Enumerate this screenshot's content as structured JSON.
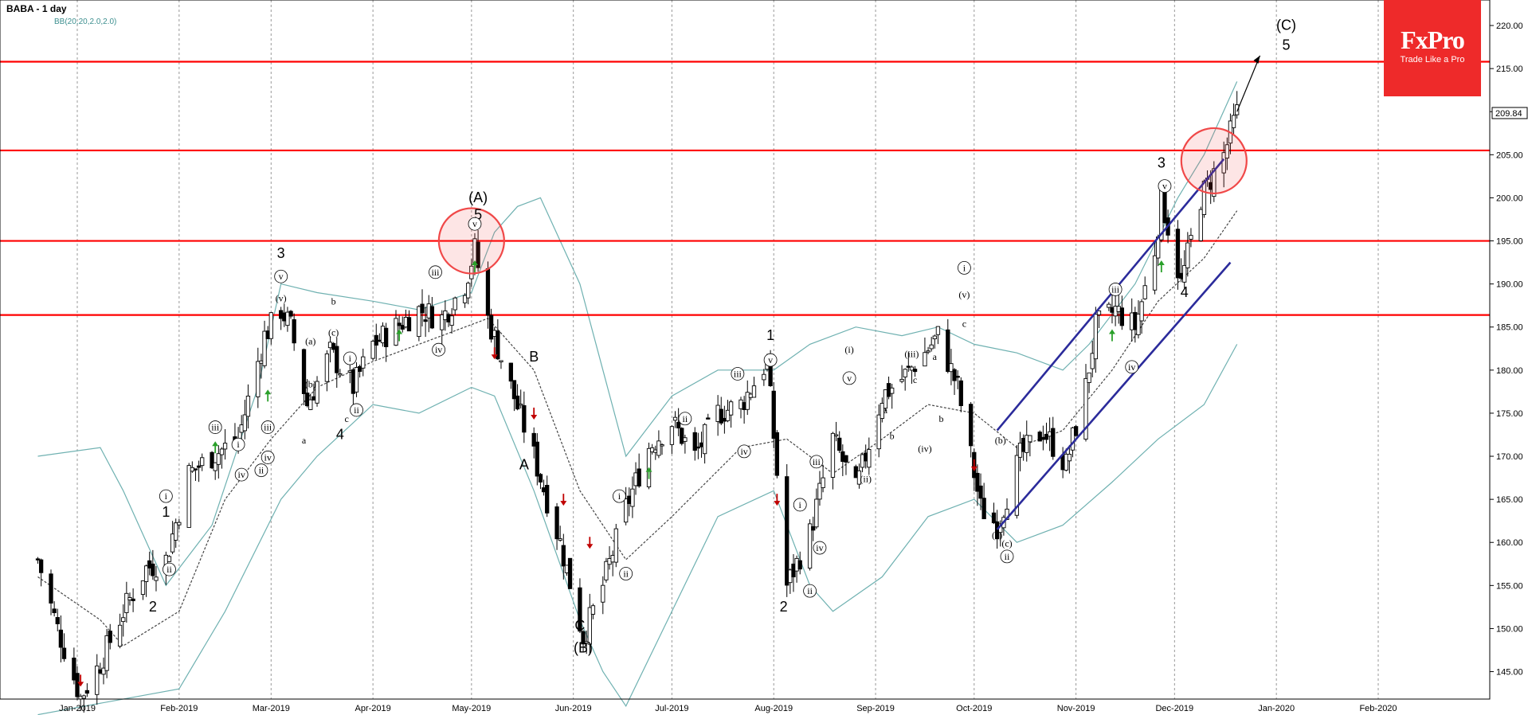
{
  "header": {
    "symbol_title": "BABA  - 1 day",
    "indicator": "BB(20,20,2.0,2.0)"
  },
  "logo": {
    "text": "FxPro",
    "tagline": "Trade Like a Pro"
  },
  "colors": {
    "support_resistance": "#ff0000",
    "channel": "#2b2b9b",
    "bollinger": "#6fb1b1",
    "signal_circle": "#f04848",
    "up_candle": "#ffffff",
    "down_candle": "#000000"
  },
  "chart_data": {
    "type": "candlestick",
    "symbol": "BABA",
    "timeframe": "1 day",
    "indicator": "BB(20,20,2.0,2.0)",
    "y_axis": {
      "range": [
        142.0,
        221.0
      ],
      "ticks": [
        "145.00",
        "150.00",
        "155.00",
        "160.00",
        "165.00",
        "170.00",
        "175.00",
        "180.00",
        "185.00",
        "190.00",
        "195.00",
        "200.00",
        "205.00",
        "210.00",
        "215.00",
        "220.00"
      ]
    },
    "x_axis": {
      "ticks": [
        "Jan-2019",
        "Feb-2019",
        "Mar-2019",
        "Apr-2019",
        "May-2019",
        "Jun-2019",
        "Jul-2019",
        "Aug-2019",
        "Sep-2019",
        "Oct-2019",
        "Nov-2019",
        "Dec-2019",
        "Jan-2020",
        "Feb-2020"
      ]
    },
    "last_price": "209.84",
    "horizontal_levels": [
      215.8,
      205.5,
      195.0,
      186.4
    ],
    "price_path": [
      [
        "2018-12-20",
        158
      ],
      [
        "2018-12-26",
        150
      ],
      [
        "2019-01-02",
        142
      ],
      [
        "2019-01-08",
        146
      ],
      [
        "2019-01-15",
        152
      ],
      [
        "2019-01-22",
        157
      ],
      [
        "2019-01-28",
        158
      ],
      [
        "2019-02-04",
        168
      ],
      [
        "2019-02-11",
        170
      ],
      [
        "2019-02-19",
        172
      ],
      [
        "2019-02-27",
        184
      ],
      [
        "2019-03-04",
        187
      ],
      [
        "2019-03-07",
        185
      ],
      [
        "2019-03-12",
        176
      ],
      [
        "2019-03-19",
        182
      ],
      [
        "2019-03-26",
        178
      ],
      [
        "2019-04-01",
        183
      ],
      [
        "2019-04-08",
        185
      ],
      [
        "2019-04-15",
        187
      ],
      [
        "2019-04-22",
        186
      ],
      [
        "2019-04-29",
        190
      ],
      [
        "2019-05-02",
        194
      ],
      [
        "2019-05-06",
        186
      ],
      [
        "2019-05-13",
        178
      ],
      [
        "2019-05-20",
        170
      ],
      [
        "2019-05-28",
        160
      ],
      [
        "2019-06-04",
        149
      ],
      [
        "2019-06-10",
        155
      ],
      [
        "2019-06-17",
        164
      ],
      [
        "2019-06-24",
        171
      ],
      [
        "2019-07-01",
        174
      ],
      [
        "2019-07-08",
        170
      ],
      [
        "2019-07-15",
        175
      ],
      [
        "2019-07-22",
        176
      ],
      [
        "2019-07-30",
        181
      ],
      [
        "2019-08-02",
        168
      ],
      [
        "2019-08-05",
        155
      ],
      [
        "2019-08-12",
        161
      ],
      [
        "2019-08-19",
        172
      ],
      [
        "2019-08-26",
        166
      ],
      [
        "2019-09-03",
        177
      ],
      [
        "2019-09-09",
        179
      ],
      [
        "2019-09-16",
        182
      ],
      [
        "2019-09-20",
        184
      ],
      [
        "2019-09-26",
        178
      ],
      [
        "2019-10-03",
        164
      ],
      [
        "2019-10-08",
        162
      ],
      [
        "2019-10-15",
        170
      ],
      [
        "2019-10-22",
        173
      ],
      [
        "2019-10-29",
        169
      ],
      [
        "2019-11-04",
        178
      ],
      [
        "2019-11-07",
        185
      ],
      [
        "2019-11-13",
        187
      ],
      [
        "2019-11-19",
        185
      ],
      [
        "2019-11-25",
        194
      ],
      [
        "2019-11-27",
        200
      ],
      [
        "2019-12-03",
        190
      ],
      [
        "2019-12-09",
        200
      ],
      [
        "2019-12-16",
        205
      ],
      [
        "2019-12-20",
        209.84
      ]
    ],
    "bollinger_upper": [
      [
        "2018-12-20",
        170
      ],
      [
        "2019-01-08",
        171
      ],
      [
        "2019-01-15",
        166
      ],
      [
        "2019-01-28",
        155
      ],
      [
        "2019-02-11",
        162
      ],
      [
        "2019-02-25",
        178
      ],
      [
        "2019-03-04",
        190
      ],
      [
        "2019-03-15",
        189
      ],
      [
        "2019-04-01",
        188
      ],
      [
        "2019-04-15",
        187
      ],
      [
        "2019-05-01",
        189
      ],
      [
        "2019-05-08",
        196
      ],
      [
        "2019-05-15",
        199
      ],
      [
        "2019-05-22",
        200
      ],
      [
        "2019-06-03",
        190
      ],
      [
        "2019-06-17",
        170
      ],
      [
        "2019-07-01",
        177
      ],
      [
        "2019-07-15",
        180
      ],
      [
        "2019-08-01",
        180
      ],
      [
        "2019-08-12",
        183
      ],
      [
        "2019-08-26",
        185
      ],
      [
        "2019-09-09",
        184
      ],
      [
        "2019-09-20",
        185
      ],
      [
        "2019-10-01",
        183
      ],
      [
        "2019-10-14",
        182
      ],
      [
        "2019-10-28",
        180
      ],
      [
        "2019-11-05",
        183
      ],
      [
        "2019-11-19",
        190
      ],
      [
        "2019-12-02",
        200
      ],
      [
        "2019-12-10",
        205
      ],
      [
        "2019-12-20",
        213.5
      ]
    ],
    "bollinger_middle": [
      [
        "2018-12-20",
        156
      ],
      [
        "2019-01-08",
        151
      ],
      [
        "2019-01-15",
        148
      ],
      [
        "2019-02-01",
        152
      ],
      [
        "2019-02-15",
        165
      ],
      [
        "2019-03-01",
        172
      ],
      [
        "2019-03-15",
        178
      ],
      [
        "2019-04-01",
        181
      ],
      [
        "2019-04-15",
        183
      ],
      [
        "2019-05-06",
        186
      ],
      [
        "2019-05-20",
        180
      ],
      [
        "2019-06-03",
        166
      ],
      [
        "2019-06-17",
        158
      ],
      [
        "2019-07-01",
        163
      ],
      [
        "2019-07-22",
        171
      ],
      [
        "2019-08-05",
        172
      ],
      [
        "2019-08-19",
        168
      ],
      [
        "2019-09-03",
        172
      ],
      [
        "2019-09-17",
        176
      ],
      [
        "2019-10-01",
        175
      ],
      [
        "2019-10-14",
        171
      ],
      [
        "2019-10-28",
        173
      ],
      [
        "2019-11-12",
        180
      ],
      [
        "2019-11-26",
        188
      ],
      [
        "2019-12-10",
        193
      ],
      [
        "2019-12-20",
        198.5
      ]
    ],
    "bollinger_lower": [
      [
        "2018-12-20",
        140
      ],
      [
        "2019-02-01",
        143
      ],
      [
        "2019-02-15",
        152
      ],
      [
        "2019-03-04",
        165
      ],
      [
        "2019-03-15",
        170
      ],
      [
        "2019-04-01",
        176
      ],
      [
        "2019-04-15",
        175
      ],
      [
        "2019-05-01",
        178
      ],
      [
        "2019-05-08",
        177
      ],
      [
        "2019-05-20",
        166
      ],
      [
        "2019-06-03",
        151
      ],
      [
        "2019-06-10",
        145
      ],
      [
        "2019-06-17",
        141
      ],
      [
        "2019-07-01",
        152
      ],
      [
        "2019-07-15",
        163
      ],
      [
        "2019-08-01",
        166
      ],
      [
        "2019-08-12",
        155
      ],
      [
        "2019-08-19",
        152
      ],
      [
        "2019-09-03",
        156
      ],
      [
        "2019-09-17",
        163
      ],
      [
        "2019-10-01",
        165
      ],
      [
        "2019-10-14",
        160
      ],
      [
        "2019-10-28",
        162
      ],
      [
        "2019-11-12",
        167
      ],
      [
        "2019-11-26",
        172
      ],
      [
        "2019-12-10",
        176
      ],
      [
        "2019-12-20",
        183
      ]
    ],
    "channel_lines": [
      {
        "from": [
          "2019-10-08",
          173
        ],
        "to": [
          "2019-12-16",
          204.5
        ]
      },
      {
        "from": [
          "2019-10-08",
          161.5
        ],
        "to": [
          "2019-12-18",
          192.5
        ]
      }
    ],
    "arrow": {
      "from": [
        "2019-12-20",
        210
      ],
      "to": [
        "2019-12-27",
        216.5
      ]
    },
    "signal_circles": [
      [
        "2019-05-01",
        195
      ],
      [
        "2019-12-13",
        204.3
      ]
    ],
    "wave_labels": [
      [
        "2019-01-28",
        163,
        "1"
      ],
      [
        "2019-01-24",
        152,
        "2"
      ],
      [
        "2019-03-04",
        193,
        "3"
      ],
      [
        "2019-03-22",
        172,
        "4"
      ],
      [
        "2019-05-03",
        199.5,
        "(A)"
      ],
      [
        "2019-05-03",
        197.5,
        "5"
      ],
      [
        "2019-05-20",
        181,
        "B"
      ],
      [
        "2019-05-17",
        168.5,
        "A"
      ],
      [
        "2019-06-03",
        149.8,
        "C"
      ],
      [
        "2019-06-04",
        147.2,
        "(B)"
      ],
      [
        "2019-07-31",
        183.5,
        "1"
      ],
      [
        "2019-08-04",
        152,
        "2"
      ],
      [
        "2019-11-27",
        203.5,
        "3"
      ],
      [
        "2019-12-04",
        188.5,
        "4"
      ],
      [
        "2020-01-04",
        219.5,
        "(C)"
      ],
      [
        "2020-01-04",
        217.2,
        "5"
      ]
    ],
    "sub_labels": [
      [
        "2019-01-28",
        165,
        "i"
      ],
      [
        "2019-01-29",
        156.5,
        "ii"
      ],
      [
        "2019-02-12",
        173,
        "iii"
      ],
      [
        "2019-02-19",
        171,
        "i"
      ],
      [
        "2019-02-20",
        167.5,
        "iv"
      ],
      [
        "2019-02-26",
        168,
        "ii"
      ],
      [
        "2019-02-28",
        173,
        "iii"
      ],
      [
        "2019-02-28",
        169.5,
        "iv"
      ],
      [
        "2019-03-04",
        190.5,
        "v"
      ],
      [
        "2019-03-04",
        188,
        "(v)"
      ],
      [
        "2019-03-11",
        171.5,
        "a"
      ],
      [
        "2019-03-13",
        178,
        "(b)"
      ],
      [
        "2019-03-13",
        183,
        "(a)"
      ],
      [
        "2019-03-20",
        184,
        "(c)"
      ],
      [
        "2019-03-20",
        187.6,
        "b"
      ],
      [
        "2019-03-24",
        174,
        "c"
      ],
      [
        "2019-03-25",
        181,
        "i"
      ],
      [
        "2019-03-27",
        175,
        "ii"
      ],
      [
        "2019-04-20",
        191,
        "iii"
      ],
      [
        "2019-04-21",
        182,
        "iv"
      ],
      [
        "2019-05-02",
        196.6,
        "v"
      ],
      [
        "2019-06-15",
        165,
        "i"
      ],
      [
        "2019-06-17",
        156,
        "ii"
      ],
      [
        "2019-07-05",
        174,
        "ii"
      ],
      [
        "2019-07-21",
        179.2,
        "iii"
      ],
      [
        "2019-07-23",
        170.2,
        "iv"
      ],
      [
        "2019-07-31",
        180.8,
        "v"
      ],
      [
        "2019-08-14",
        169,
        "iii"
      ],
      [
        "2019-08-09",
        164,
        "i"
      ],
      [
        "2019-08-12",
        154,
        "ii"
      ],
      [
        "2019-08-15",
        159,
        "iv"
      ],
      [
        "2019-08-24",
        182,
        "(i)"
      ],
      [
        "2019-08-24",
        178.7,
        "v"
      ],
      [
        "2019-08-29",
        167,
        "(ii)"
      ],
      [
        "2019-09-04",
        175,
        "a"
      ],
      [
        "2019-09-06",
        172,
        "b"
      ],
      [
        "2019-09-12",
        181.5,
        "(iii)"
      ],
      [
        "2019-09-13",
        178.5,
        "c"
      ],
      [
        "2019-09-16",
        170.5,
        "(iv)"
      ],
      [
        "2019-09-19",
        181.2,
        "a"
      ],
      [
        "2019-09-21",
        174,
        "b"
      ],
      [
        "2019-09-28",
        185,
        "c"
      ],
      [
        "2019-09-28",
        191.5,
        "i"
      ],
      [
        "2019-09-28",
        188.4,
        "(v)"
      ],
      [
        "2019-10-08",
        160.5,
        "(a)"
      ],
      [
        "2019-10-09",
        171.5,
        "(b)"
      ],
      [
        "2019-10-11",
        159.5,
        "(c)"
      ],
      [
        "2019-10-11",
        158,
        "ii"
      ],
      [
        "2019-11-13",
        189,
        "iii"
      ],
      [
        "2019-11-18",
        180,
        "iv"
      ],
      [
        "2019-11-28",
        201,
        "v"
      ]
    ],
    "signal_arrows": [
      [
        "2019-01-02",
        144,
        "down"
      ],
      [
        "2019-02-12",
        171,
        "up"
      ],
      [
        "2019-02-28",
        177,
        "up"
      ],
      [
        "2019-04-09",
        184,
        "up"
      ],
      [
        "2019-05-02",
        192,
        "up"
      ],
      [
        "2019-05-08",
        182,
        "down"
      ],
      [
        "2019-05-20",
        175,
        "down"
      ],
      [
        "2019-05-29",
        165,
        "down"
      ],
      [
        "2019-06-06",
        160,
        "down"
      ],
      [
        "2019-06-24",
        168,
        "up"
      ],
      [
        "2019-08-02",
        165,
        "down"
      ],
      [
        "2019-10-01",
        169,
        "down"
      ],
      [
        "2019-11-12",
        184,
        "up"
      ],
      [
        "2019-11-27",
        192,
        "up"
      ]
    ]
  }
}
